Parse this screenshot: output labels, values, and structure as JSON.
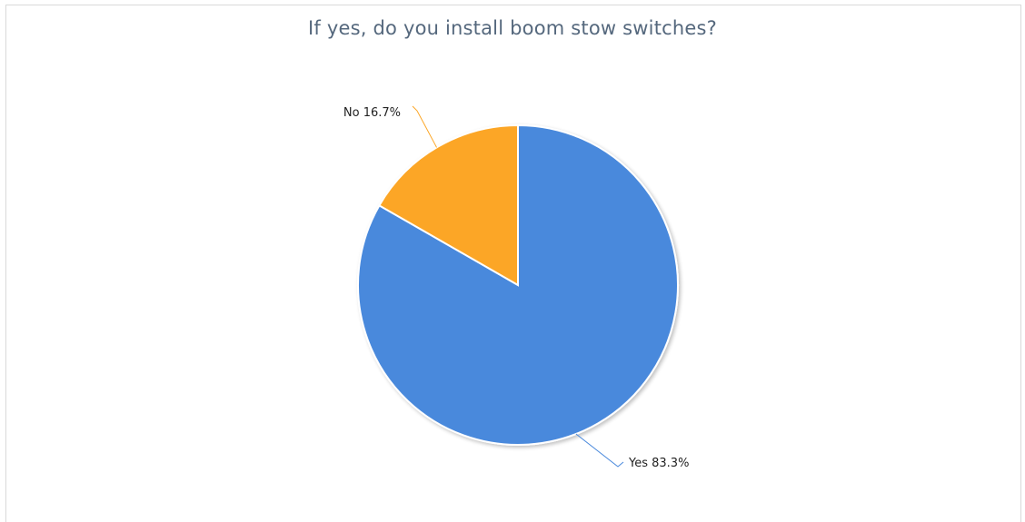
{
  "chart_data": {
    "type": "pie",
    "title": "If yes, do you install boom stow switches?",
    "slices": [
      {
        "label": "Yes",
        "value": 83.3,
        "display": "Yes 83.3%",
        "color": "#4a89dc"
      },
      {
        "label": "No",
        "value": 16.7,
        "display": "No 16.7%",
        "color": "#fca626"
      }
    ],
    "legend": "none",
    "data_labels": "outside with leader lines"
  }
}
